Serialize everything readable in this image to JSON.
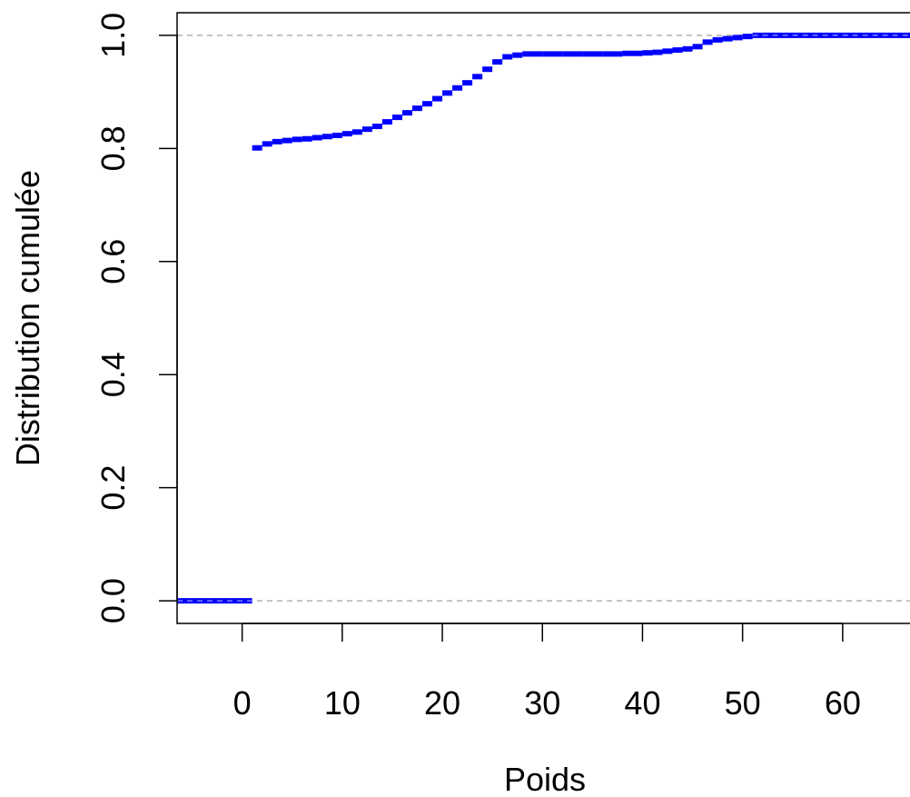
{
  "chart_data": {
    "type": "line",
    "title": "",
    "xlabel": "Poids",
    "ylabel": "Distribution cumulée",
    "xlim": [
      -6.5,
      67
    ],
    "ylim": [
      -0.04,
      1.04
    ],
    "x_ticks": [
      0,
      10,
      20,
      30,
      40,
      50,
      60
    ],
    "x_tick_labels": [
      "0",
      "10",
      "20",
      "30",
      "40",
      "50",
      "60"
    ],
    "y_ticks": [
      0.0,
      0.2,
      0.4,
      0.6,
      0.8,
      1.0
    ],
    "y_tick_labels": [
      "0.0",
      "0.2",
      "0.4",
      "0.6",
      "0.8",
      "1.0"
    ],
    "reference_lines": [
      0,
      1
    ],
    "grid": false,
    "legend": "none",
    "series": [
      {
        "step": "post",
        "x": [
          -6.5,
          1,
          2,
          3,
          4,
          5,
          6,
          7,
          8,
          9,
          10,
          11,
          12,
          13,
          14,
          15,
          16,
          17,
          18,
          19,
          20,
          21,
          22,
          23,
          24,
          25,
          26,
          27,
          28,
          30,
          32,
          34,
          36,
          38,
          40,
          41,
          42,
          43,
          44,
          45,
          46,
          47,
          48,
          49,
          50,
          51,
          52,
          67
        ],
        "y": [
          0.0,
          0.801,
          0.808,
          0.812,
          0.814,
          0.816,
          0.817,
          0.819,
          0.821,
          0.823,
          0.826,
          0.829,
          0.834,
          0.839,
          0.847,
          0.855,
          0.863,
          0.871,
          0.879,
          0.888,
          0.898,
          0.907,
          0.916,
          0.927,
          0.94,
          0.953,
          0.962,
          0.965,
          0.967,
          0.967,
          0.967,
          0.967,
          0.967,
          0.968,
          0.969,
          0.97,
          0.972,
          0.974,
          0.976,
          0.98,
          0.988,
          0.992,
          0.994,
          0.996,
          0.998,
          1.0,
          1.0,
          1.0
        ]
      }
    ]
  },
  "colors": {
    "series": "#0000ff",
    "reference_line": "#b0b0b0",
    "axis": "#000000"
  }
}
